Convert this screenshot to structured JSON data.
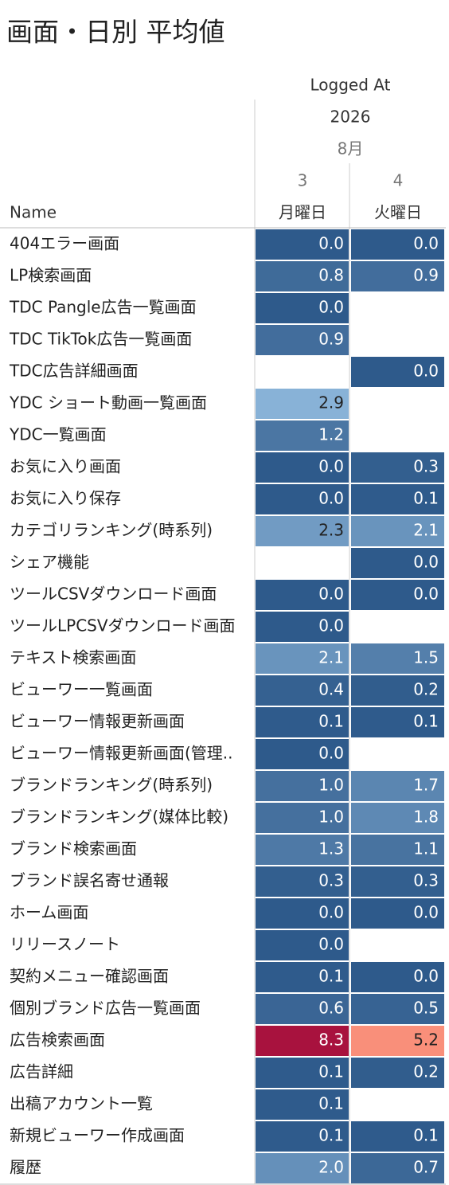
{
  "title": "画面・日別 平均値",
  "header": {
    "group": "Logged At",
    "year": "2026",
    "month": "8月",
    "days": [
      "3",
      "4"
    ],
    "weekdays": [
      "月曜日",
      "火曜日"
    ],
    "name_label": "Name"
  },
  "table": {
    "rows": [
      [
        "404エラー画面",
        "0.0",
        "0.0"
      ],
      [
        "LP検索画面",
        "0.8",
        "0.9"
      ],
      [
        "TDC Pangle広告一覧画面",
        "0.0",
        null
      ],
      [
        "TDC TikTok広告一覧画面",
        "0.9",
        null
      ],
      [
        "TDC広告詳細画面",
        null,
        "0.0"
      ],
      [
        "YDC ショート動画一覧画面",
        "2.9",
        null
      ],
      [
        "YDC一覧画面",
        "1.2",
        null
      ],
      [
        "お気に入り画面",
        "0.0",
        "0.3"
      ],
      [
        "お気に入り保存",
        "0.0",
        "0.1"
      ],
      [
        "カテゴリランキング(時系列)",
        "2.3",
        "2.1"
      ],
      [
        "シェア機能",
        null,
        "0.0"
      ],
      [
        "ツールCSVダウンロード画面",
        "0.0",
        "0.0"
      ],
      [
        "ツールLPCSVダウンロード画面",
        "0.0",
        null
      ],
      [
        "テキスト検索画面",
        "2.1",
        "1.5"
      ],
      [
        "ビューワー一覧画面",
        "0.4",
        "0.2"
      ],
      [
        "ビューワー情報更新画面",
        "0.1",
        "0.1"
      ],
      [
        "ビューワー情報更新画面(管理..",
        "0.0",
        null
      ],
      [
        "ブランドランキング(時系列)",
        "1.0",
        "1.7"
      ],
      [
        "ブランドランキング(媒体比較)",
        "1.0",
        "1.8"
      ],
      [
        "ブランド検索画面",
        "1.3",
        "1.1"
      ],
      [
        "ブランド誤名寄せ通報",
        "0.3",
        "0.3"
      ],
      [
        "ホーム画面",
        "0.0",
        "0.0"
      ],
      [
        "リリースノート",
        "0.0",
        null
      ],
      [
        "契約メニュー確認画面",
        "0.1",
        "0.0"
      ],
      [
        "個別ブランド広告一覧画面",
        "0.6",
        "0.5"
      ],
      [
        "広告検索画面",
        "8.3",
        "5.2"
      ],
      [
        "広告詳細",
        "0.1",
        "0.2"
      ],
      [
        "出稿アカウント一覧",
        "0.1",
        null
      ],
      [
        "新規ビューワー作成画面",
        "0.1",
        "0.1"
      ],
      [
        "履歴",
        "2.0",
        "0.7"
      ]
    ]
  }
}
